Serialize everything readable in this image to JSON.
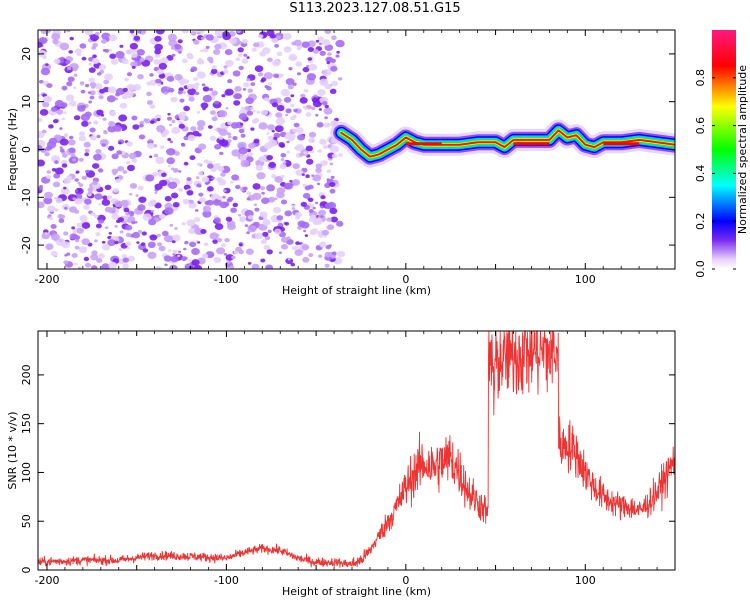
{
  "title": "S113.2023.127.08.51.G15",
  "chart_data": [
    {
      "type": "heatmap",
      "title": "",
      "xlabel": "Height of straight line (km)",
      "ylabel": "Frequency (Hz)",
      "xlim": [
        -205,
        150
      ],
      "ylim": [
        -25,
        25
      ],
      "xticks": [
        -200,
        -100,
        0,
        100
      ],
      "yticks": [
        -20,
        -10,
        0,
        10,
        20
      ],
      "noise_region_x": [
        -205,
        -36
      ],
      "signal_track": {
        "x": [
          -36,
          -30,
          -25,
          -20,
          -15,
          -10,
          -5,
          0,
          5,
          10,
          20,
          30,
          40,
          50,
          55,
          60,
          70,
          80,
          85,
          90,
          95,
          100,
          105,
          110,
          120,
          130,
          140,
          150
        ],
        "y": [
          3.5,
          2,
          0,
          -1.5,
          -1,
          0,
          1,
          2.5,
          1.5,
          1,
          1,
          1,
          1.5,
          1.5,
          0.5,
          2,
          2,
          2,
          4,
          2.5,
          3,
          1,
          0.5,
          1.5,
          1.5,
          2,
          1.5,
          1
        ]
      },
      "colorbar": {
        "label": "Normalized spectral amplitude",
        "range": [
          0,
          1
        ],
        "ticks": [
          0.0,
          0.2,
          0.4,
          0.6,
          0.8
        ],
        "colors": [
          "#e8d0f8",
          "#7a2cf0",
          "#0000ff",
          "#00ffff",
          "#00ff00",
          "#ffff00",
          "#ff0000",
          "#ff1a80"
        ]
      }
    },
    {
      "type": "line",
      "title": "",
      "xlabel": "Height of straight line (km)",
      "ylabel": "SNR (10 * v/v)",
      "xlim": [
        -205,
        150
      ],
      "ylim": [
        0,
        245
      ],
      "xticks": [
        -200,
        -100,
        0,
        100
      ],
      "yticks": [
        0,
        50,
        100,
        150,
        200
      ],
      "series": [
        {
          "color": "#ee3333",
          "x": [
            -205,
            -180,
            -160,
            -140,
            -120,
            -100,
            -90,
            -80,
            -70,
            -60,
            -50,
            -40,
            -30,
            -25,
            -20,
            -15,
            -10,
            -5,
            0,
            5,
            10,
            15,
            20,
            25,
            30,
            35,
            40,
            45,
            47,
            50,
            55,
            60,
            65,
            70,
            75,
            80,
            85,
            87,
            90,
            95,
            100,
            105,
            110,
            115,
            120,
            125,
            130,
            135,
            140,
            145,
            150
          ],
          "y": [
            8,
            10,
            10,
            15,
            14,
            12,
            18,
            22,
            20,
            12,
            8,
            8,
            6,
            10,
            20,
            35,
            50,
            65,
            85,
            100,
            110,
            105,
            110,
            115,
            100,
            80,
            70,
            60,
            50,
            215,
            218,
            220,
            222,
            225,
            224,
            222,
            225,
            125,
            130,
            120,
            100,
            85,
            75,
            70,
            65,
            65,
            60,
            68,
            80,
            95,
            115
          ]
        }
      ]
    }
  ]
}
